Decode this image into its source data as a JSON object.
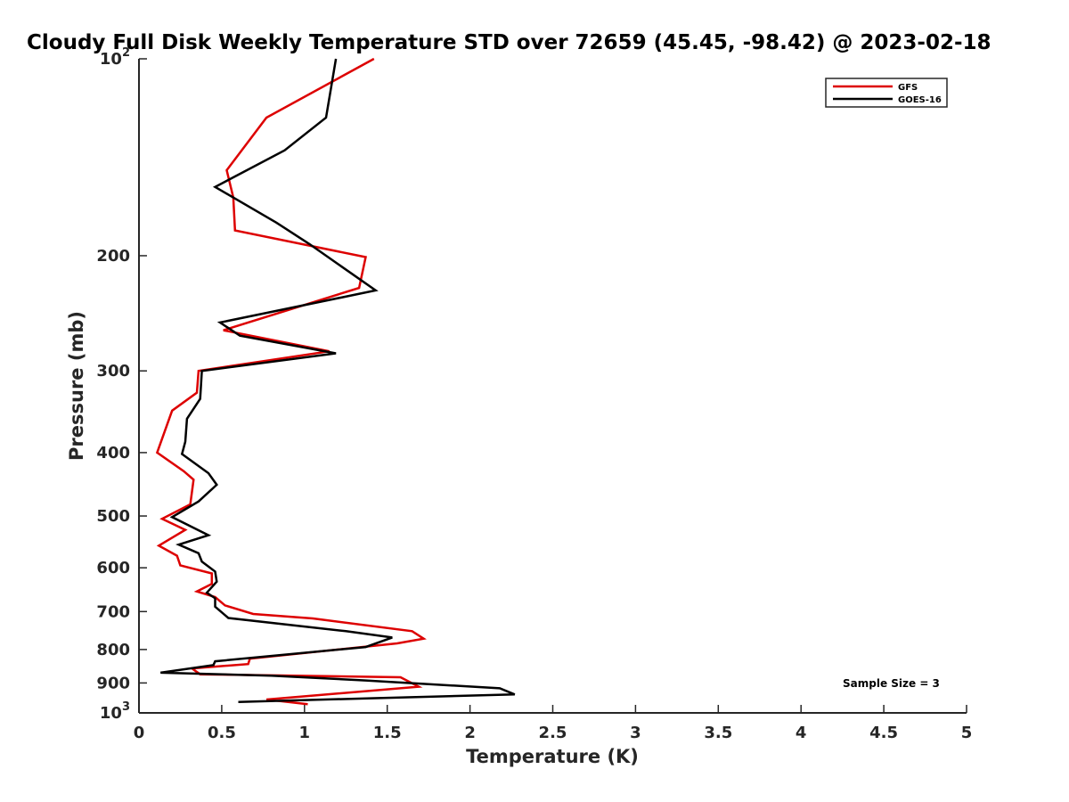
{
  "chart_data": {
    "type": "line",
    "title": "Cloudy Full Disk Weekly Temperature STD over 72659 (45.45, -98.42) @ 2023-02-18",
    "xlabel": "Temperature (K)",
    "ylabel": "Pressure (mb)",
    "xlim": [
      0,
      5
    ],
    "ylim": [
      100,
      1000
    ],
    "y_scale": "log",
    "y_reversed": true,
    "grid": false,
    "legend_position": "top-right",
    "x_ticks": [
      "0",
      "0.5",
      "1",
      "1.5",
      "2",
      "2.5",
      "3",
      "3.5",
      "4",
      "4.5",
      "5"
    ],
    "x_tick_values": [
      0,
      0.5,
      1,
      1.5,
      2,
      2.5,
      3,
      3.5,
      4,
      4.5,
      5
    ],
    "y_ticks": [
      {
        "value": 100,
        "base": "10",
        "exp": "2"
      },
      {
        "value": 200,
        "label": "200"
      },
      {
        "value": 300,
        "label": "300"
      },
      {
        "value": 400,
        "label": "400"
      },
      {
        "value": 500,
        "label": "500"
      },
      {
        "value": 600,
        "label": "600"
      },
      {
        "value": 700,
        "label": "700"
      },
      {
        "value": 800,
        "label": "800"
      },
      {
        "value": 900,
        "label": "900"
      },
      {
        "value": 1000,
        "base": "10",
        "exp": "3"
      }
    ],
    "annotation": "Sample Size = 3",
    "series": [
      {
        "name": "GFS",
        "color": "#dd0000",
        "points": [
          [
            1.42,
            100
          ],
          [
            0.77,
            123
          ],
          [
            0.53,
            148
          ],
          [
            0.57,
            163
          ],
          [
            0.58,
            183
          ],
          [
            1.37,
            201
          ],
          [
            1.33,
            224
          ],
          [
            0.51,
            260
          ],
          [
            1.15,
            280
          ],
          [
            0.36,
            300
          ],
          [
            0.35,
            324
          ],
          [
            0.2,
            345
          ],
          [
            0.11,
            400
          ],
          [
            0.27,
            427
          ],
          [
            0.33,
            440
          ],
          [
            0.31,
            480
          ],
          [
            0.14,
            505
          ],
          [
            0.28,
            525
          ],
          [
            0.12,
            555
          ],
          [
            0.23,
            575
          ],
          [
            0.25,
            595
          ],
          [
            0.44,
            612
          ],
          [
            0.44,
            635
          ],
          [
            0.35,
            652
          ],
          [
            0.46,
            665
          ],
          [
            0.52,
            685
          ],
          [
            0.69,
            706
          ],
          [
            1.05,
            717
          ],
          [
            1.65,
            750
          ],
          [
            1.72,
            770
          ],
          [
            1.56,
            783
          ],
          [
            0.67,
            826
          ],
          [
            0.66,
            842
          ],
          [
            0.32,
            855
          ],
          [
            0.37,
            873
          ],
          [
            1.58,
            882
          ],
          [
            1.69,
            912
          ],
          [
            0.77,
            954
          ],
          [
            1.02,
            970
          ]
        ]
      },
      {
        "name": "GOES-16",
        "color": "#000000",
        "points": [
          [
            1.19,
            100
          ],
          [
            1.13,
            123
          ],
          [
            0.88,
            138
          ],
          [
            0.46,
            157
          ],
          [
            0.83,
            178
          ],
          [
            1.03,
            192
          ],
          [
            1.43,
            226
          ],
          [
            0.49,
            253
          ],
          [
            0.61,
            265
          ],
          [
            1.19,
            282
          ],
          [
            0.38,
            300
          ],
          [
            0.37,
            331
          ],
          [
            0.29,
            355
          ],
          [
            0.28,
            385
          ],
          [
            0.26,
            402
          ],
          [
            0.42,
            430
          ],
          [
            0.47,
            448
          ],
          [
            0.36,
            475
          ],
          [
            0.2,
            502
          ],
          [
            0.42,
            535
          ],
          [
            0.24,
            553
          ],
          [
            0.36,
            570
          ],
          [
            0.38,
            587
          ],
          [
            0.46,
            608
          ],
          [
            0.47,
            630
          ],
          [
            0.41,
            655
          ],
          [
            0.46,
            668
          ],
          [
            0.46,
            688
          ],
          [
            0.54,
            716
          ],
          [
            1.25,
            750
          ],
          [
            1.53,
            767
          ],
          [
            1.37,
            793
          ],
          [
            0.46,
            834
          ],
          [
            0.45,
            845
          ],
          [
            0.13,
            868
          ],
          [
            0.8,
            877
          ],
          [
            1.37,
            892
          ],
          [
            2.18,
            917
          ],
          [
            2.27,
            937
          ],
          [
            1.4,
            950
          ],
          [
            0.6,
            962
          ]
        ]
      }
    ]
  }
}
